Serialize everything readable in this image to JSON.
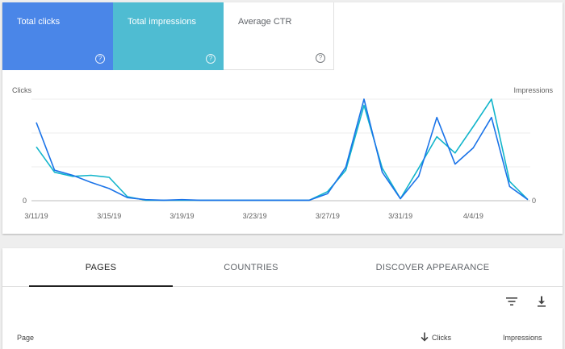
{
  "metrics": [
    {
      "label": "Total clicks",
      "help": "?"
    },
    {
      "label": "Total impressions",
      "help": "?"
    },
    {
      "label": "Average CTR",
      "help": "?"
    }
  ],
  "chart": {
    "left_axis_label": "Clicks",
    "right_axis_label": "Impressions",
    "left_zero": "0",
    "right_zero": "0",
    "x_ticks": [
      "3/11/19",
      "3/15/19",
      "3/19/19",
      "3/23/19",
      "3/27/19",
      "3/31/19",
      "4/4/19"
    ]
  },
  "chart_data": {
    "type": "line",
    "x": [
      "3/11/19",
      "3/12/19",
      "3/13/19",
      "3/14/19",
      "3/15/19",
      "3/16/19",
      "3/17/19",
      "3/18/19",
      "3/19/19",
      "3/20/19",
      "3/21/19",
      "3/22/19",
      "3/23/19",
      "3/24/19",
      "3/25/19",
      "3/26/19",
      "3/27/19",
      "3/28/19",
      "3/29/19",
      "3/30/19",
      "3/31/19",
      "4/1/19",
      "4/2/19",
      "4/3/19",
      "4/4/19",
      "4/5/19",
      "4/6/19",
      "4/7/19"
    ],
    "series": [
      {
        "name": "Clicks",
        "color": "#1a73e8",
        "axis": "left",
        "values": [
          0.77,
          0.3,
          0.25,
          0.18,
          0.12,
          0.03,
          0.01,
          0.005,
          0.01,
          0.005,
          0.005,
          0.005,
          0.005,
          0.005,
          0.005,
          0.005,
          0.07,
          0.33,
          1.0,
          0.28,
          0.02,
          0.24,
          0.82,
          0.36,
          0.52,
          0.82,
          0.14,
          0.01
        ]
      },
      {
        "name": "Impressions",
        "color": "#12b5cb",
        "axis": "right",
        "values": [
          0.53,
          0.28,
          0.24,
          0.25,
          0.23,
          0.04,
          0.005,
          0.005,
          0.005,
          0.005,
          0.005,
          0.005,
          0.005,
          0.005,
          0.005,
          0.005,
          0.09,
          0.3,
          0.94,
          0.32,
          0.02,
          0.32,
          0.63,
          0.47,
          0.73,
          1.0,
          0.19,
          0.01
        ]
      }
    ],
    "ylim": [
      0,
      1
    ],
    "grid": true
  },
  "tabs": [
    {
      "label": "PAGES"
    },
    {
      "label": "COUNTRIES"
    },
    {
      "label": "DISCOVER APPEARANCE"
    }
  ],
  "toolbar": {
    "filter_icon": "filter-icon",
    "download_icon": "download-icon"
  },
  "table": {
    "col_page": "Page",
    "col_clicks": "Clicks",
    "col_impressions": "Impressions",
    "sort_icon": "arrow-down-icon"
  }
}
